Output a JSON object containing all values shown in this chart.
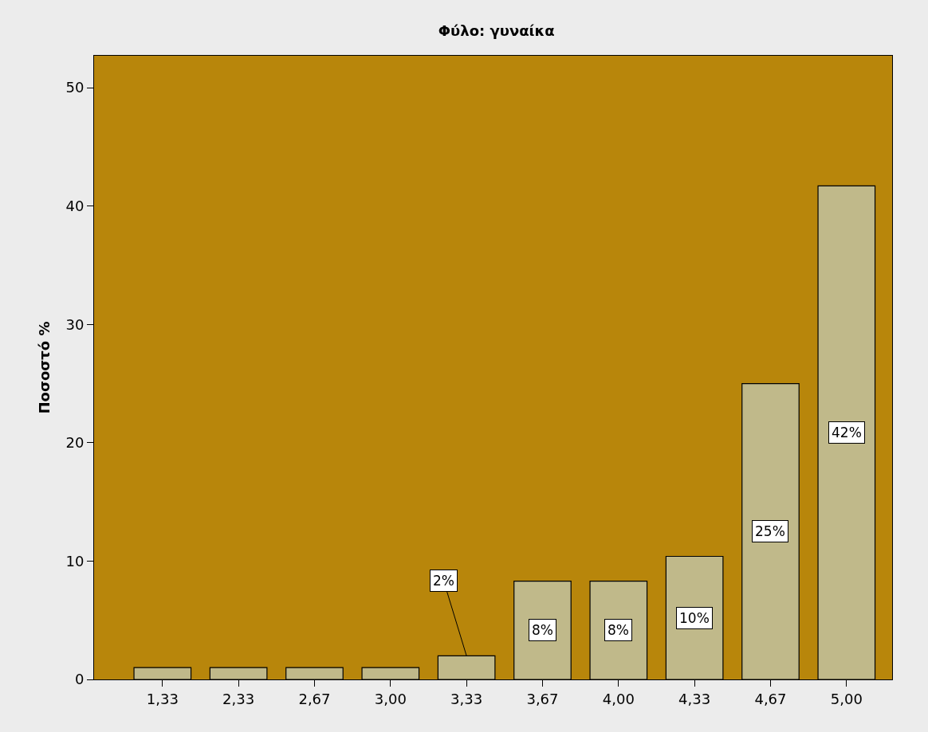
{
  "chart_data": {
    "type": "bar",
    "title": "Φύλο: γυναίκα",
    "ylabel": "Ποσοστό %",
    "categories": [
      "1,33",
      "2,33",
      "2,67",
      "3,00",
      "3,33",
      "3,67",
      "4,00",
      "4,33",
      "4,67",
      "5,00"
    ],
    "values": [
      1,
      1,
      1,
      1,
      2,
      8.3,
      8.3,
      10.4,
      25,
      41.7
    ],
    "value_labels": [
      null,
      null,
      null,
      null,
      "2%",
      "8%",
      "8%",
      "10%",
      "25%",
      "42%"
    ],
    "color": "#c0b98a",
    "ylim": [
      0,
      52.7
    ],
    "yticks": [
      0,
      10,
      20,
      30,
      40,
      50
    ],
    "grid": false
  }
}
